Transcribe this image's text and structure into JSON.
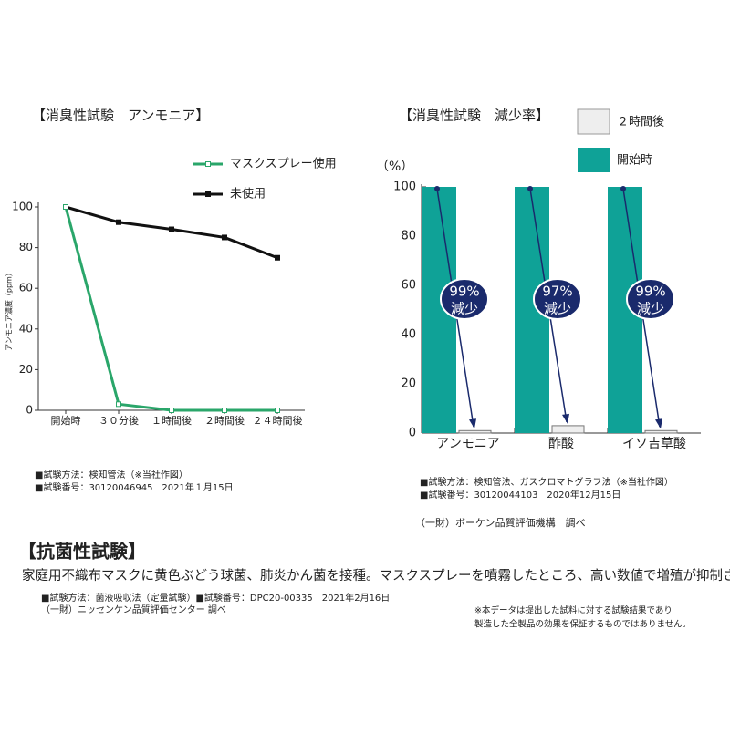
{
  "chart_data": [
    {
      "type": "line",
      "title": "【消臭性試験　アンモニア】",
      "y_label": "アンモニア濃度（ppm）",
      "categories": [
        "開始時",
        "３０分後",
        "１時間後",
        "２時間後",
        "２４時間後"
      ],
      "series": [
        {
          "name": "マスクスプレー使用",
          "color": "#2aa66a",
          "values": [
            100,
            3,
            0,
            0,
            0
          ]
        },
        {
          "name": "未使用",
          "color": "#111111",
          "values": [
            100,
            92.5,
            89,
            85,
            75
          ]
        }
      ],
      "ylim": [
        0,
        100
      ],
      "yticks": [
        0,
        20,
        40,
        60,
        80,
        100
      ],
      "notes": [
        "■試験方法：検知管法（※当社作図）",
        "■試験番号：30120046945　2021年１月15日"
      ]
    },
    {
      "type": "bar",
      "title": "【消臭性試験　減少率】",
      "unit": "（%）",
      "categories": [
        "アンモニア",
        "酢酸",
        "イソ吉草酸"
      ],
      "series": [
        {
          "name": "２時間後",
          "color": "#eeeeee",
          "values": [
            1,
            3,
            1
          ]
        },
        {
          "name": "開始時",
          "color": "#0fa297",
          "values": [
            100,
            100,
            100
          ]
        }
      ],
      "reduction": {
        "values": [
          99,
          97,
          99
        ],
        "value_labels": [
          "99%",
          "97%",
          "99%"
        ],
        "word": [
          "減少",
          "減少",
          "減少"
        ]
      },
      "ylim": [
        0,
        100
      ],
      "yticks": [
        0,
        20,
        40,
        60,
        80,
        100
      ],
      "notes": [
        "■試験方法：検知管法、ガスクロマトグラフ法（※当社作図）",
        "■試験番号：30120044103　2020年12月15日"
      ],
      "source": "（一財）ボーケン品質評価機構　調べ"
    }
  ],
  "antibacterial": {
    "title": "【抗菌性試験】",
    "description": "家庭用不織布マスクに黄色ぶどう球菌、肺炎かん菌を接種。マスクスプレーを噴霧したところ、高い数値で増殖が抑制された。",
    "method": "■試験方法：菌液吸収法（定量試験）■試験番号：DPC20-00335　2021年2月16日",
    "source": "（一財）ニッセンケン品質評価センター 調べ"
  },
  "disclaimer": [
    "※本データは提出した試料に対する試験結果であり",
    "製造した全製品の効果を保証するものではありません。"
  ]
}
